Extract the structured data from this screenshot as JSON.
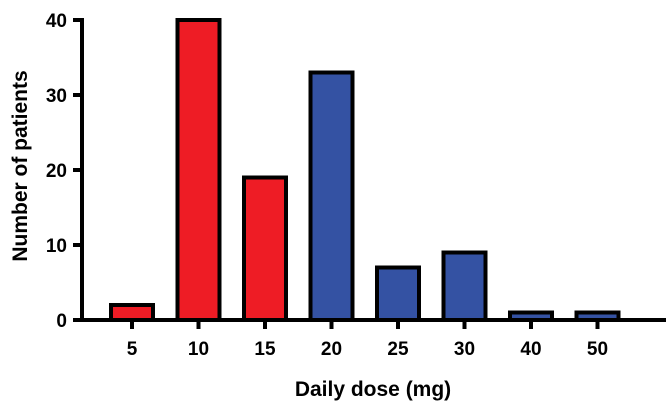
{
  "chart_data": {
    "type": "bar",
    "title": "",
    "xlabel": "Daily dose (mg)",
    "ylabel": "Number of patients",
    "categories": [
      "5",
      "10",
      "15",
      "20",
      "25",
      "30",
      "40",
      "50"
    ],
    "values": [
      2,
      40,
      19,
      33,
      7,
      9,
      1,
      1
    ],
    "bar_colors": [
      "#ee1c25",
      "#ee1c25",
      "#ee1c25",
      "#3452a3",
      "#3452a3",
      "#3452a3",
      "#3452a3",
      "#3452a3"
    ],
    "bar_outline_color": "#000000",
    "ylim": [
      0,
      40
    ],
    "yticks": [
      0,
      10,
      20,
      30,
      40
    ],
    "grid": false,
    "legend": "none"
  }
}
